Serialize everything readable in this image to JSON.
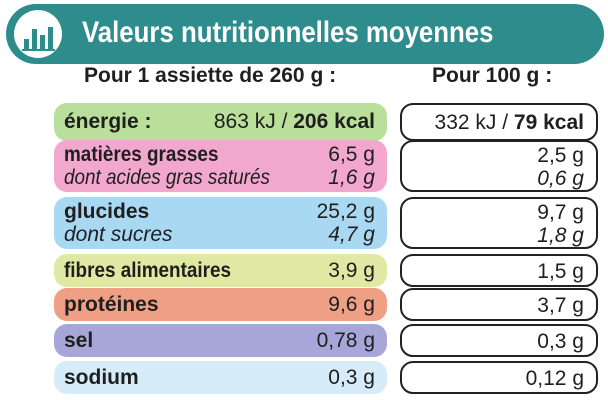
{
  "header": {
    "title": "Valeurs nutritionnelles moyennes",
    "logo_icon": "bar-chart-icon",
    "color": "#2f8c8c"
  },
  "columns": {
    "portion": "Pour 1 assiette de 260 g :",
    "per100": "Pour 100 g :"
  },
  "rows": {
    "energie": {
      "label": "énergie :",
      "kj": "863 kJ / ",
      "kcal": "206 kcal",
      "kj100": "332 kJ / ",
      "kcal100": "79 kcal",
      "color": "#b9df9a"
    },
    "matieres": {
      "label": "matières grasses",
      "value": "6,5 g",
      "value100": "2,5 g",
      "sublabel": "dont acides gras saturés",
      "subvalue": "1,6 g",
      "subvalue100": "0,6 g",
      "color": "#f2a7cf"
    },
    "glucides": {
      "label": "glucides",
      "value": "25,2 g",
      "value100": "9,7 g",
      "sublabel": "dont sucres",
      "subvalue": "4,7 g",
      "subvalue100": "1,8 g",
      "color": "#a9d8f2"
    },
    "fibres": {
      "label": "fibres alimentaires",
      "value": "3,9 g",
      "value100": "1,5 g",
      "color": "#dfe9a3"
    },
    "proteines": {
      "label": "protéines",
      "value": "9,6 g",
      "value100": "3,7 g",
      "color": "#ef9f84"
    },
    "sel": {
      "label": "sel",
      "value": "0,78 g",
      "value100": "0,3 g",
      "color": "#a7a6d9"
    },
    "sodium": {
      "label": "sodium",
      "value": "0,3 g",
      "value100": "0,12 g",
      "color": "#d6ecf8"
    }
  }
}
